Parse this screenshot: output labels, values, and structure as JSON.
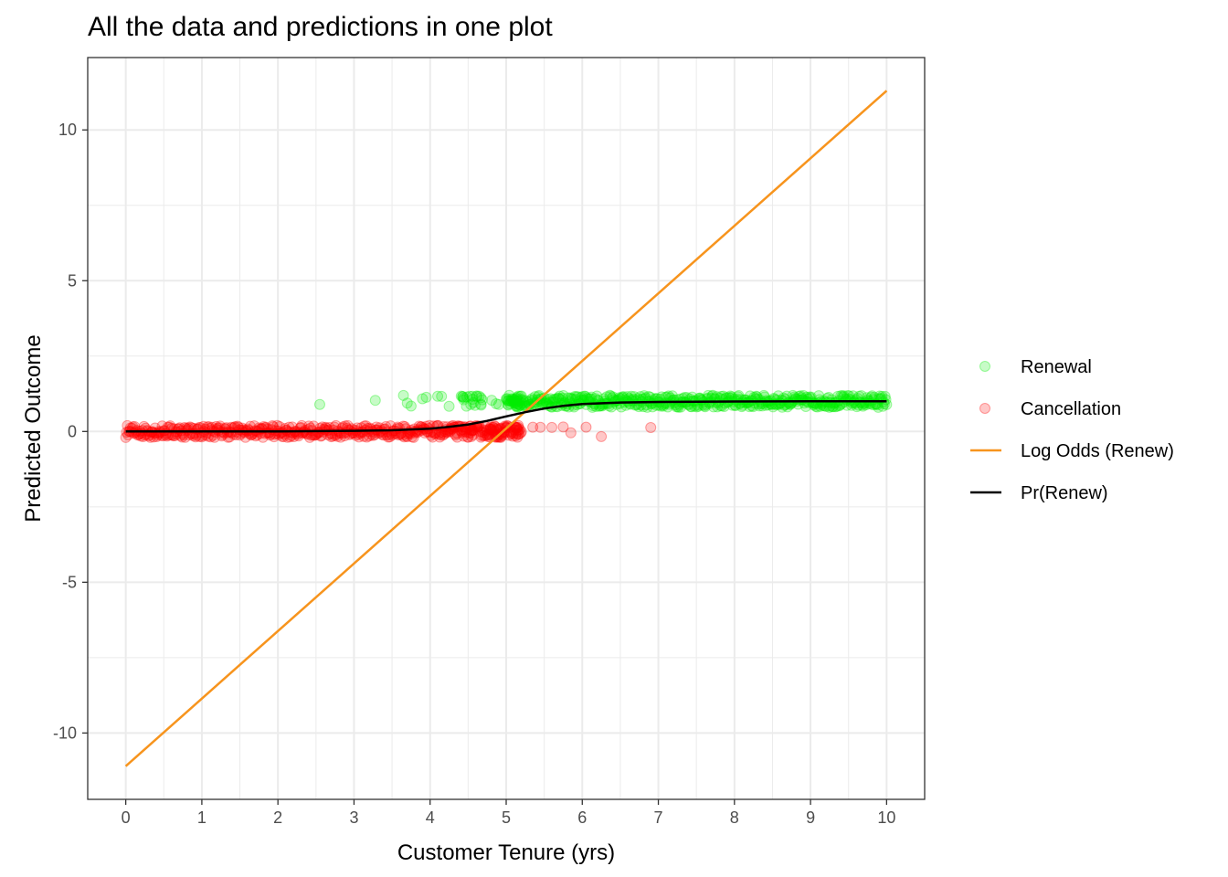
{
  "chart_data": {
    "type": "scatter",
    "title": "All the data and predictions in one plot",
    "xlabel": "Customer Tenure (yrs)",
    "ylabel": "Predicted Outcome",
    "xlim": [
      -0.5,
      10.5
    ],
    "ylim": [
      -12.2,
      12.4
    ],
    "x_ticks": [
      "0",
      "1",
      "2",
      "3",
      "4",
      "5",
      "6",
      "7",
      "8",
      "9",
      "10"
    ],
    "y_ticks": [
      {
        "value": -10,
        "label": "-10"
      },
      {
        "value": -5,
        "label": "-5"
      },
      {
        "value": 0,
        "label": "0"
      },
      {
        "value": 5,
        "label": "5"
      },
      {
        "value": 10,
        "label": "10"
      }
    ],
    "grid": true,
    "legend_position": "right",
    "legend": [
      {
        "label": "Renewal",
        "kind": "point",
        "color": "#00ee00"
      },
      {
        "label": "Cancellation",
        "kind": "point",
        "color": "#ff0000"
      },
      {
        "label": "Log Odds (Renew)",
        "kind": "line",
        "color": "#f7941d"
      },
      {
        "label": "Pr(Renew)",
        "kind": "line",
        "color": "#000000"
      }
    ],
    "series": [
      {
        "name": "Renewal",
        "kind": "points",
        "color": "#00ee00",
        "x_range": [
          2.5,
          10.0
        ],
        "y_center": 1,
        "jitter": 0.2,
        "count": 500,
        "x_outliers": [
          2.55,
          3.28,
          3.65,
          3.7,
          3.75,
          3.9,
          3.95,
          4.1,
          4.15,
          4.25
        ]
      },
      {
        "name": "Cancellation",
        "kind": "points",
        "color": "#ff0000",
        "x_range": [
          0.0,
          6.9
        ],
        "y_center": 0,
        "jitter": 0.2,
        "count": 500,
        "x_outliers": [
          5.35,
          5.45,
          5.6,
          5.75,
          5.85,
          6.05,
          6.25,
          6.9
        ]
      },
      {
        "name": "Log Odds (Renew)",
        "kind": "line",
        "color": "#f7941d",
        "x": [
          0,
          10
        ],
        "y": [
          -11.1,
          11.3
        ]
      },
      {
        "name": "Pr(Renew)",
        "kind": "line",
        "color": "#000000",
        "x": [
          0,
          1,
          2,
          3,
          3.5,
          4,
          4.25,
          4.5,
          4.75,
          5,
          5.25,
          5.5,
          5.75,
          6,
          6.5,
          7,
          8,
          9,
          10
        ],
        "y": [
          0,
          0,
          0.002,
          0.02,
          0.04,
          0.09,
          0.15,
          0.23,
          0.35,
          0.5,
          0.64,
          0.76,
          0.85,
          0.91,
          0.96,
          0.98,
          0.995,
          0.999,
          1.0
        ]
      }
    ]
  }
}
